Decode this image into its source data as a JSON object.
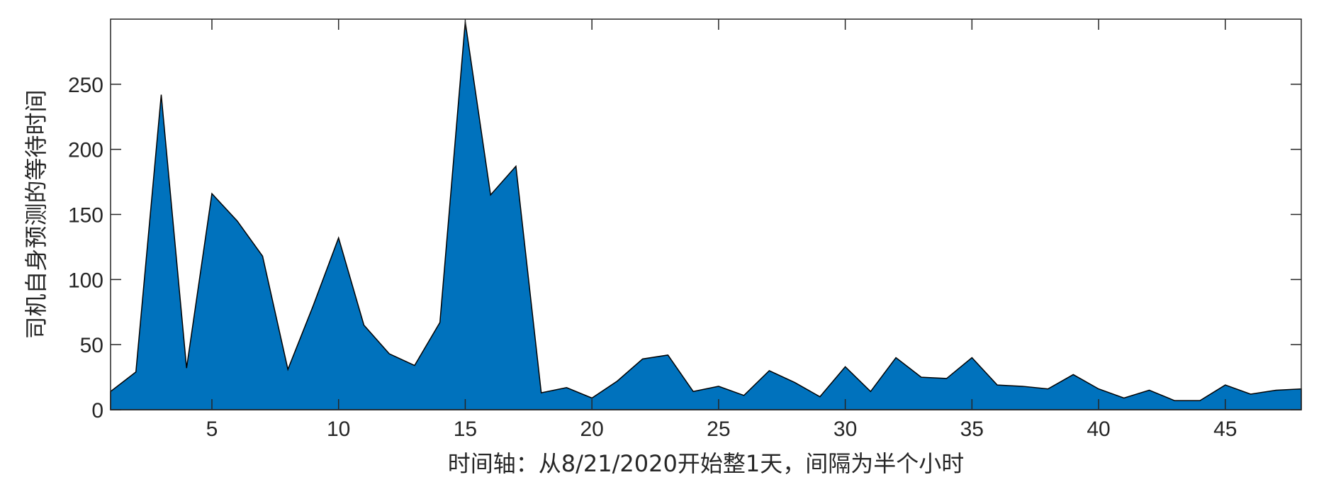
{
  "chart_data": {
    "type": "area",
    "xlabel": "时间轴：从8/21/2020开始整1天，间隔为半个小时",
    "ylabel": "司机自身预测的等待时间",
    "xlim": [
      1,
      48
    ],
    "ylim": [
      0,
      300
    ],
    "xticks": [
      5,
      10,
      15,
      20,
      25,
      30,
      35,
      40,
      45
    ],
    "yticks": [
      0,
      50,
      100,
      150,
      200,
      250
    ],
    "grid": false,
    "fill_color": "#0072BD",
    "edge_color": "#000000",
    "x": [
      1,
      2,
      3,
      4,
      5,
      6,
      7,
      8,
      9,
      10,
      11,
      12,
      13,
      14,
      15,
      16,
      17,
      18,
      19,
      20,
      21,
      22,
      23,
      24,
      25,
      26,
      27,
      28,
      29,
      30,
      31,
      32,
      33,
      34,
      35,
      36,
      37,
      38,
      39,
      40,
      41,
      42,
      43,
      44,
      45,
      46,
      47,
      48
    ],
    "values": [
      14,
      29,
      242,
      32,
      166,
      145,
      118,
      31,
      80,
      132,
      65,
      43,
      34,
      67,
      298,
      165,
      187,
      13,
      17,
      9,
      22,
      39,
      42,
      14,
      18,
      11,
      30,
      21,
      10,
      33,
      14,
      40,
      25,
      24,
      40,
      19,
      18,
      16,
      27,
      16,
      9,
      15,
      7,
      7,
      19,
      12,
      15,
      16
    ]
  }
}
